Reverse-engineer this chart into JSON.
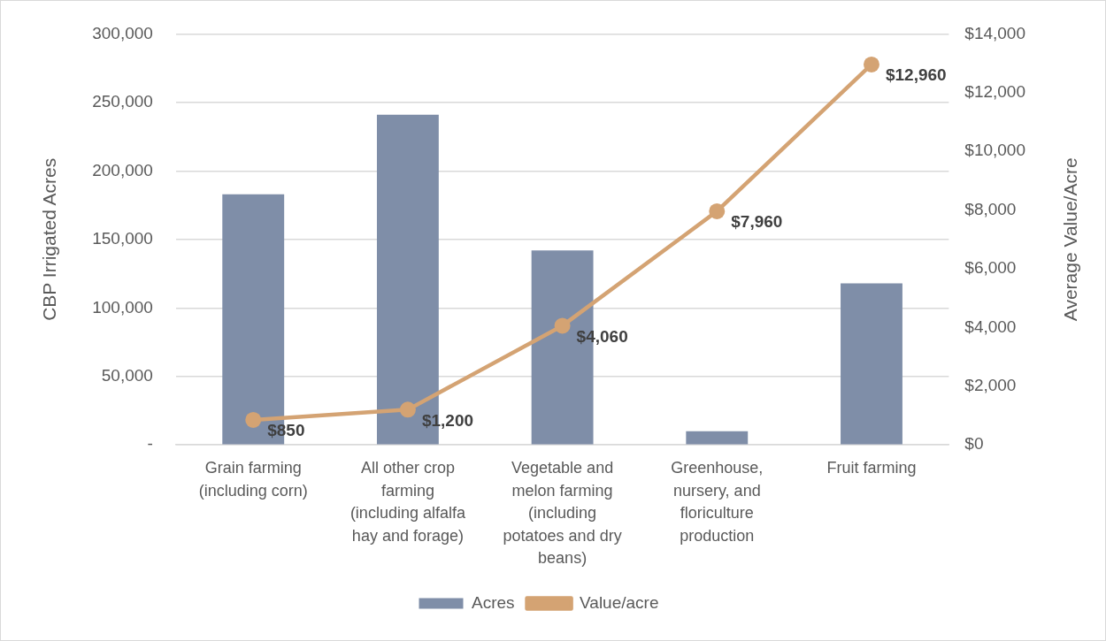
{
  "chart_data": {
    "type": "bar",
    "categories": [
      "Grain farming (including corn)",
      "All other crop farming (including alfalfa hay and forage)",
      "Vegetable and melon farming (including potatoes and dry beans)",
      "Greenhouse, nursery, and floriculture production",
      "Fruit farming"
    ],
    "series": [
      {
        "name": "Acres",
        "type": "bar",
        "color": "#7f8ea8",
        "values": [
          183000,
          241000,
          142000,
          10000,
          118000
        ]
      },
      {
        "name": "Value/acre",
        "type": "line",
        "axis": "y2",
        "color": "#d4a373",
        "values": [
          850,
          1200,
          4060,
          7960,
          12960
        ],
        "value_labels": [
          "$850",
          "$1,200",
          "$4,060",
          "$7,960",
          "$12,960"
        ]
      }
    ],
    "ylabel": "CBP Irrigated Acres",
    "y2label": "Average Value/Acre",
    "ylim": [
      0,
      300000
    ],
    "yticks": [
      {
        "value": 0,
        "label": "-"
      },
      {
        "value": 50000,
        "label": "50,000"
      },
      {
        "value": 100000,
        "label": "100,000"
      },
      {
        "value": 150000,
        "label": "150,000"
      },
      {
        "value": 200000,
        "label": "200,000"
      },
      {
        "value": 250000,
        "label": "250,000"
      },
      {
        "value": 300000,
        "label": "300,000"
      }
    ],
    "y2lim": [
      0,
      14000
    ],
    "y2ticks": [
      {
        "value": 0,
        "label": "$0"
      },
      {
        "value": 2000,
        "label": "$2,000"
      },
      {
        "value": 4000,
        "label": "$4,000"
      },
      {
        "value": 6000,
        "label": "$6,000"
      },
      {
        "value": 8000,
        "label": "$8,000"
      },
      {
        "value": 10000,
        "label": "$10,000"
      },
      {
        "value": 12000,
        "label": "$12,000"
      },
      {
        "value": 14000,
        "label": "$14,000"
      }
    ],
    "grid": "y",
    "legend": "bottom",
    "marker": "circle",
    "line_style": "solid"
  }
}
